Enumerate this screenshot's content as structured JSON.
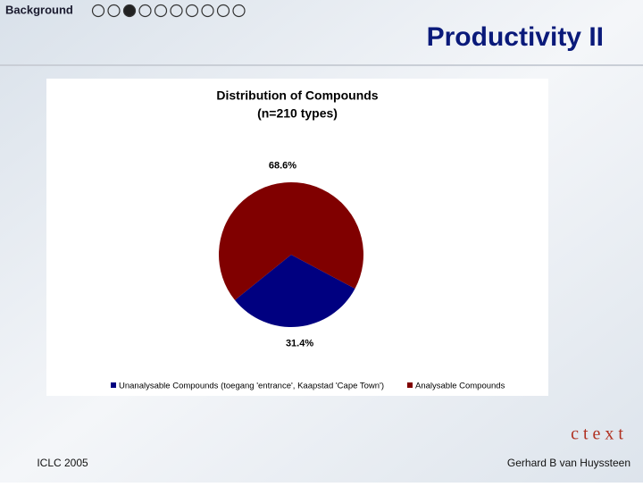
{
  "slide": {
    "section": "Background",
    "heading": "Productivity II",
    "footer_left": "ICLC 2005",
    "footer_right": "Gerhard B van Huyssteen",
    "logo": "ctext"
  },
  "chart_data": {
    "type": "pie",
    "title": "Distribution of Compounds",
    "subtitle": "(n=210 types)",
    "categories": [
      "Unanalysable Compounds (toegang 'entrance', Kaapstad 'Cape Town')",
      "Analysable Compounds"
    ],
    "values": [
      31.4,
      68.6
    ],
    "value_labels": [
      "31.4%",
      "68.6%"
    ],
    "colors": [
      "#000080",
      "#800000"
    ],
    "legend": "bottom"
  }
}
